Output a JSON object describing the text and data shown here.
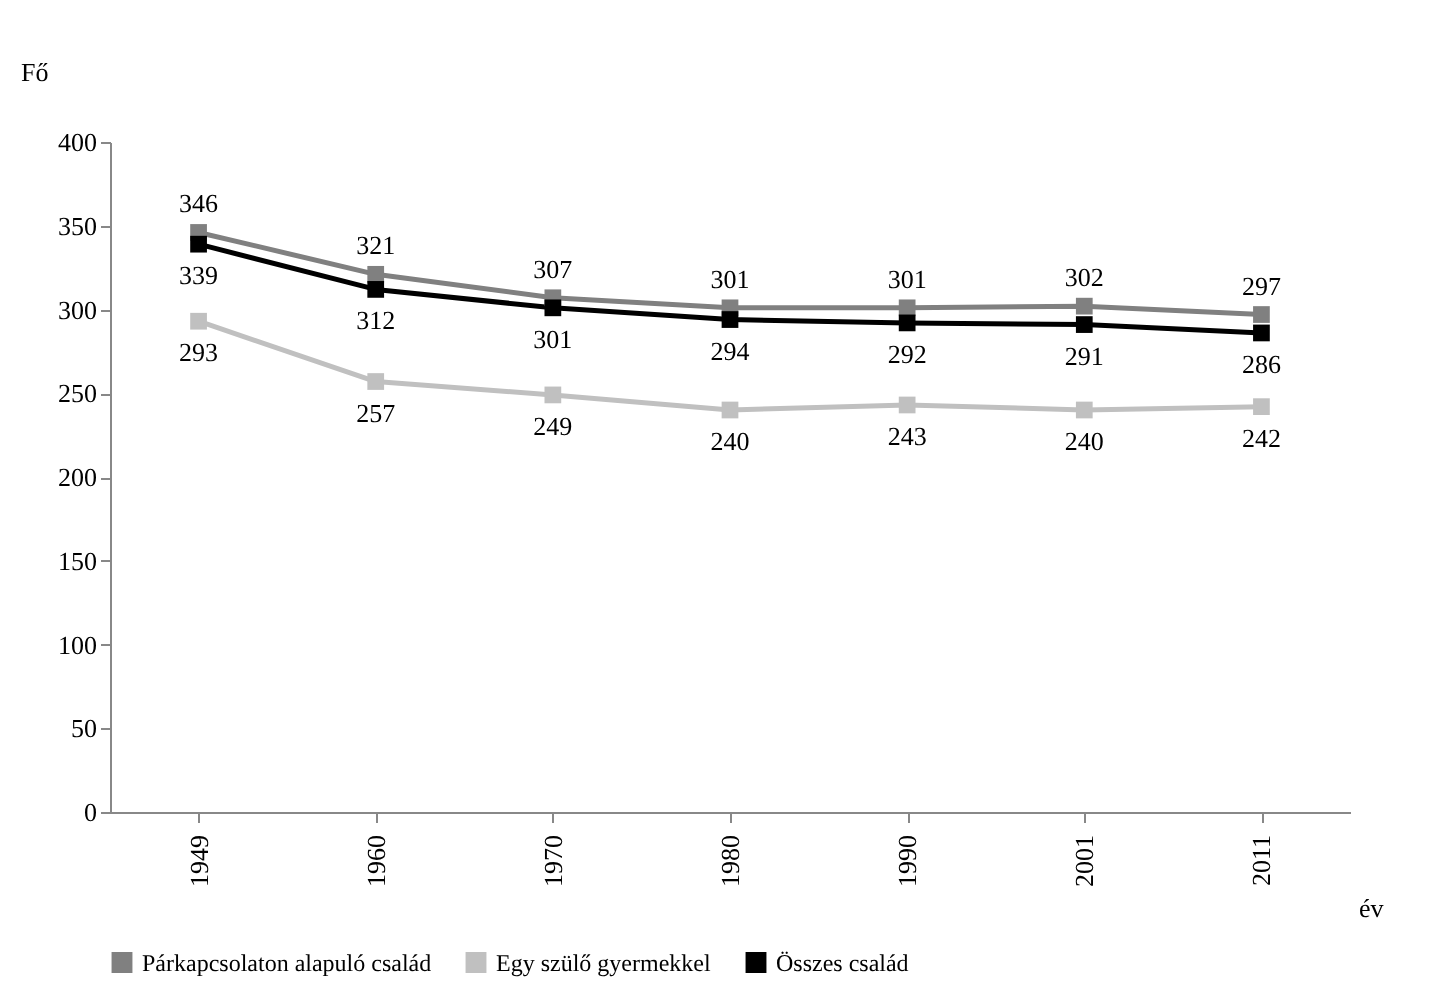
{
  "chart_data": {
    "type": "line",
    "xlabel": "év",
    "ylabel": "Fő",
    "categories": [
      "1949",
      "1960",
      "1970",
      "1980",
      "1990",
      "2001",
      "2011"
    ],
    "series": [
      {
        "name": "Párkapcsolaton alapuló család",
        "color": "#808080",
        "values": [
          346,
          321,
          307,
          301,
          301,
          302,
          297
        ]
      },
      {
        "name": "Egy szülő gyermekkel",
        "color": "#c0c0c0",
        "values": [
          293,
          257,
          249,
          240,
          243,
          240,
          242
        ]
      },
      {
        "name": "Összes család",
        "color": "#000000",
        "values": [
          339,
          312,
          301,
          294,
          292,
          291,
          286
        ]
      }
    ],
    "ylim": [
      0,
      400
    ],
    "yticks": [
      0,
      50,
      100,
      150,
      200,
      250,
      300,
      350,
      400
    ],
    "grid": false,
    "legend": "bottom",
    "marker": "square",
    "line_style": "solid",
    "data_labels": true
  }
}
